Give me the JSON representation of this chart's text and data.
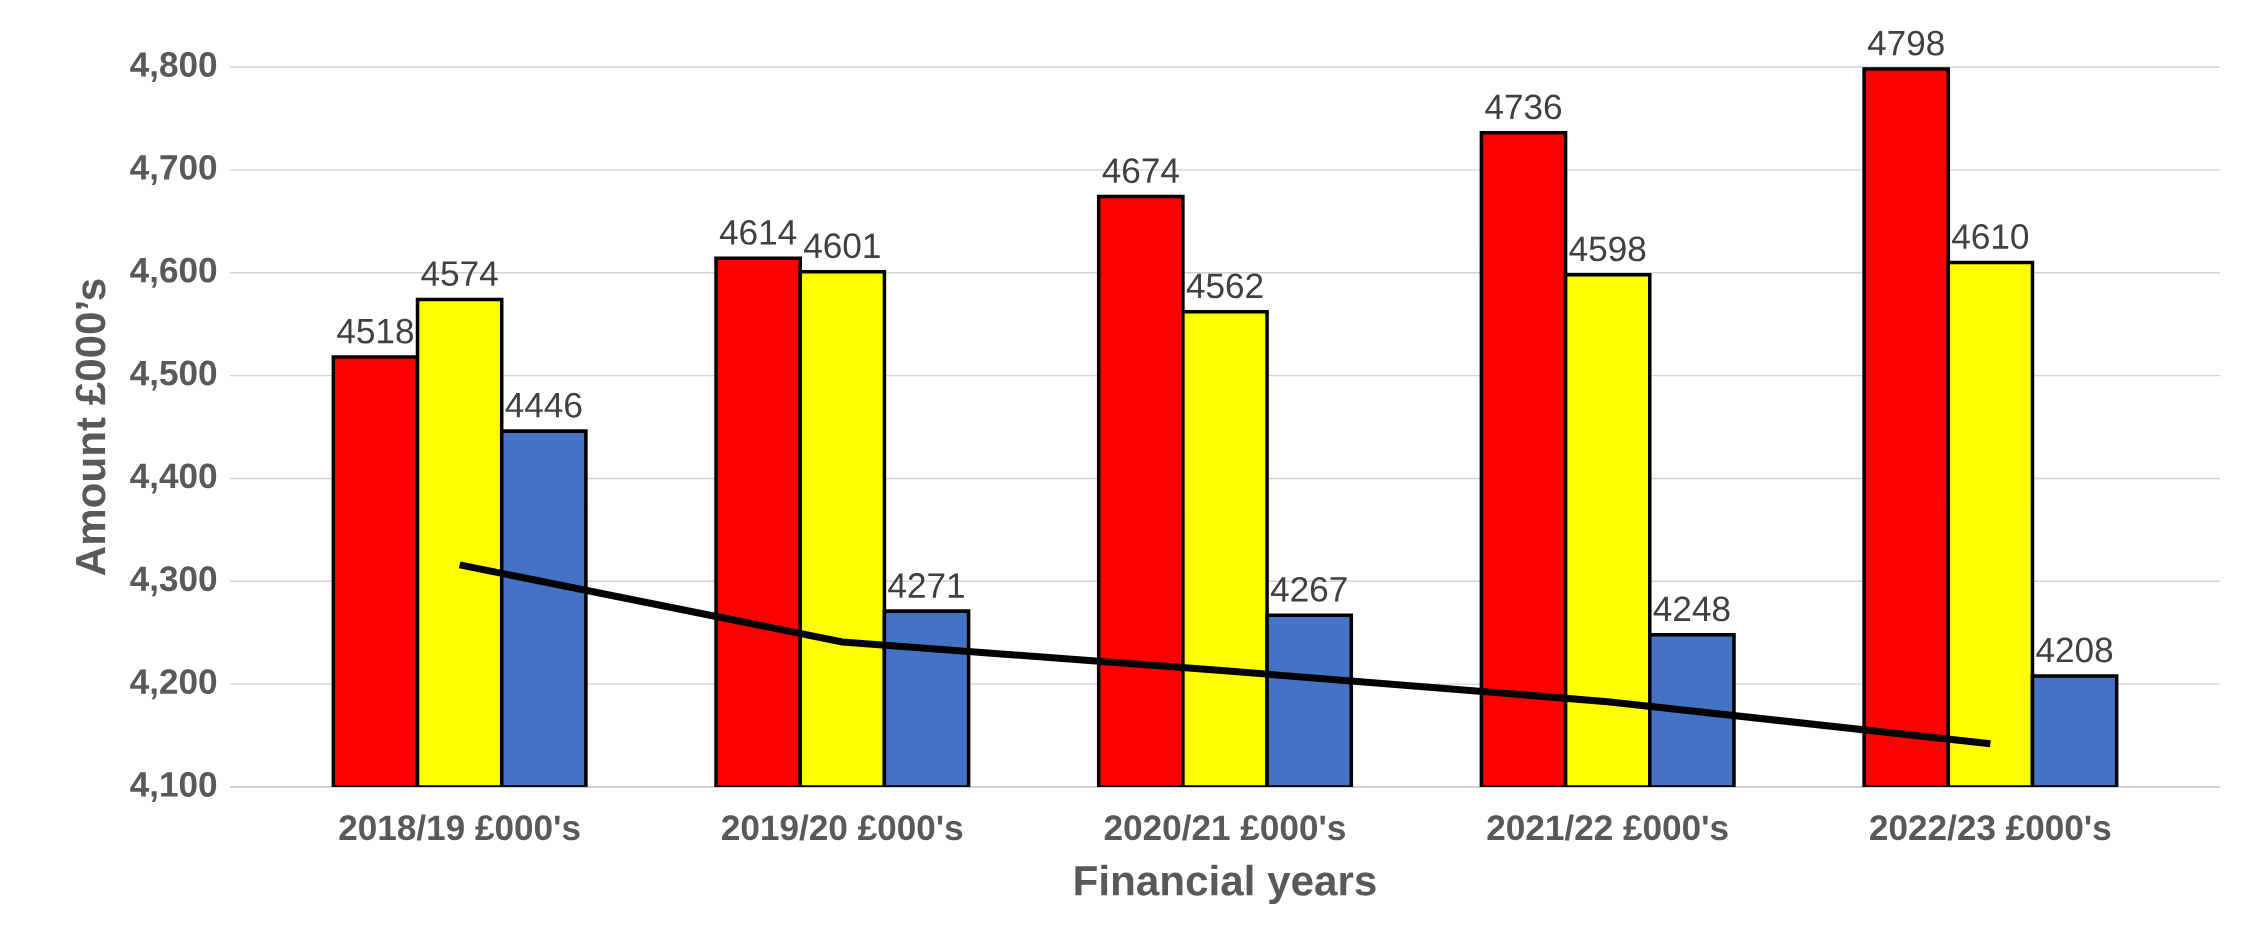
{
  "chart_data": {
    "type": "bar",
    "categories": [
      "2018/19  £000's",
      "2019/20    £000's",
      "2020/21   £000's",
      "2021/22  £000's",
      "2022/23    £000's"
    ],
    "series": [
      {
        "color": "#ff0000",
        "values": [
          4518,
          4614,
          4674,
          4736,
          4798
        ],
        "value_labels": [
          "4518",
          "4614",
          "4674",
          "4736",
          "4798"
        ]
      },
      {
        "color": "#ffff00",
        "values": [
          4574,
          4601,
          4562,
          4598,
          4610
        ],
        "value_labels": [
          "4574",
          "4601",
          "4562",
          "4598",
          "4610"
        ]
      },
      {
        "color": "#4472c4",
        "values": [
          4446,
          4271,
          4267,
          4248,
          4208
        ],
        "value_labels": [
          "4446",
          "4271",
          "4267",
          "4248",
          "4208"
        ]
      },
      {
        "type": "line",
        "color": "#000000",
        "values": [
          4316,
          4241,
          4213,
          4183,
          4142
        ]
      }
    ],
    "xlabel": "Financial years",
    "ylabel": "Amount £000’s",
    "ylim": [
      4100,
      4800
    ],
    "yticks": [
      {
        "value": 4100,
        "label": "4,100"
      },
      {
        "value": 4200,
        "label": "4,200"
      },
      {
        "value": 4300,
        "label": "4,300"
      },
      {
        "value": 4400,
        "label": "4,400"
      },
      {
        "value": 4500,
        "label": "4,500"
      },
      {
        "value": 4600,
        "label": "4,600"
      },
      {
        "value": 4700,
        "label": "4,700"
      },
      {
        "value": 4800,
        "label": "4,800"
      }
    ],
    "grid": "y",
    "marker": "none"
  }
}
